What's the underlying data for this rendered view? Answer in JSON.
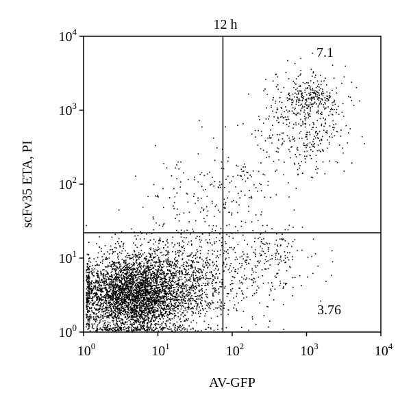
{
  "chart_data": {
    "type": "scatter",
    "title": "12 h",
    "xlabel": "AV-GFP",
    "ylabel": "scFv35 ETA, PI",
    "xscale": "log",
    "yscale": "log",
    "xlim": [
      1,
      10000
    ],
    "ylim": [
      1,
      10000
    ],
    "x_ticks": [
      {
        "base": "10",
        "exp": "0"
      },
      {
        "base": "10",
        "exp": "1"
      },
      {
        "base": "10",
        "exp": "2"
      },
      {
        "base": "10",
        "exp": "3"
      },
      {
        "base": "10",
        "exp": "4"
      }
    ],
    "y_ticks": [
      {
        "base": "10",
        "exp": "0"
      },
      {
        "base": "10",
        "exp": "1"
      },
      {
        "base": "10",
        "exp": "2"
      },
      {
        "base": "10",
        "exp": "3"
      },
      {
        "base": "10",
        "exp": "4"
      }
    ],
    "gates": {
      "x": 75,
      "y": 22
    },
    "quadrant_labels": {
      "upper_right": "7.1",
      "lower_right": "3.76"
    },
    "grid": false,
    "clusters": [
      {
        "name": "negative",
        "cx": 4.5,
        "cy": 3.2,
        "sx": 0.36,
        "sy": 0.26,
        "n": 4200
      },
      {
        "name": "negative-tail",
        "cx": 18,
        "cy": 5.0,
        "sx": 0.45,
        "sy": 0.3,
        "n": 1100
      },
      {
        "name": "lower-right",
        "cx": 300,
        "cy": 9,
        "sx": 0.35,
        "sy": 0.25,
        "n": 220
      },
      {
        "name": "upper-right",
        "cx": 900,
        "cy": 700,
        "sx": 0.28,
        "sy": 0.35,
        "n": 420
      },
      {
        "name": "upper-right-dense",
        "cx": 1200,
        "cy": 1500,
        "sx": 0.16,
        "sy": 0.12,
        "n": 160
      },
      {
        "name": "upper-left-sparse",
        "cx": 25,
        "cy": 60,
        "sx": 0.35,
        "sy": 0.3,
        "n": 90
      },
      {
        "name": "diagonal-bridge",
        "cx": 110,
        "cy": 80,
        "sx": 0.3,
        "sy": 0.35,
        "n": 130
      }
    ]
  }
}
